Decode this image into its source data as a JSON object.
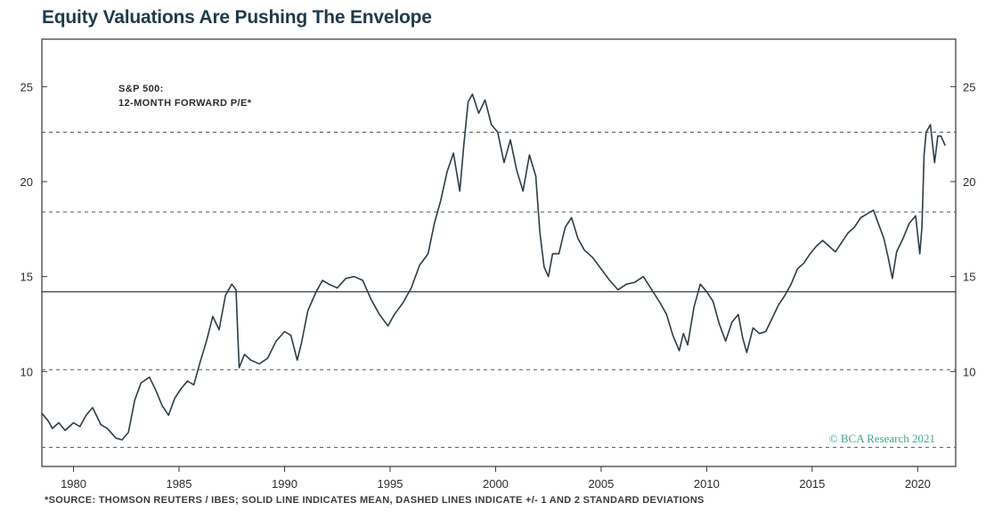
{
  "page": {
    "title": "Equity Valuations Are Pushing The Envelope",
    "footnote": "*SOURCE: THOMSON REUTERS / IBES; SOLID LINE INDICATES MEAN, DASHED LINES INDICATE +/- 1 AND 2 STANDARD DEVIATIONS",
    "watermark": "© BCA Research 2021"
  },
  "colors": {
    "line": "#2b3d45",
    "frame": "#333333",
    "mean": "#2b3d45",
    "dashed": "#555555",
    "watermark": "#3da68f"
  },
  "chart_data": {
    "type": "line",
    "title": "Equity Valuations Are Pushing The Envelope",
    "series_label": [
      "S&P 500:",
      "12-MONTH FORWARD P/E*"
    ],
    "xlim": [
      1978.5,
      2021.8
    ],
    "ylim": [
      5,
      27.5
    ],
    "x_ticks": [
      1980,
      1985,
      1990,
      1995,
      2000,
      2005,
      2010,
      2015,
      2020
    ],
    "y_ticks": [
      10,
      15,
      20,
      25
    ],
    "mean": 14.2,
    "std_lines": [
      6.0,
      10.1,
      18.4,
      22.6
    ],
    "grid": false,
    "axes": "left and right y-axes",
    "series": [
      {
        "name": "S&P 500: 12-MONTH FORWARD P/E*",
        "x": [
          1978.5,
          1978.8,
          1979.0,
          1979.3,
          1979.6,
          1980.0,
          1980.3,
          1980.6,
          1980.9,
          1981.3,
          1981.6,
          1982.0,
          1982.3,
          1982.6,
          1982.9,
          1983.2,
          1983.6,
          1983.9,
          1984.2,
          1984.5,
          1984.8,
          1985.1,
          1985.4,
          1985.7,
          1986.0,
          1986.3,
          1986.6,
          1986.9,
          1987.2,
          1987.5,
          1987.7,
          1987.85,
          1988.1,
          1988.4,
          1988.8,
          1989.2,
          1989.6,
          1990.0,
          1990.3,
          1990.6,
          1990.8,
          1991.1,
          1991.5,
          1991.8,
          1992.1,
          1992.5,
          1992.9,
          1993.3,
          1993.7,
          1994.1,
          1994.5,
          1994.9,
          1995.2,
          1995.6,
          1996.0,
          1996.4,
          1996.8,
          1997.1,
          1997.4,
          1997.7,
          1998.0,
          1998.3,
          1998.5,
          1998.7,
          1998.9,
          1999.2,
          1999.5,
          1999.8,
          2000.1,
          2000.4,
          2000.7,
          2001.0,
          2001.3,
          2001.6,
          2001.9,
          2002.1,
          2002.3,
          2002.5,
          2002.7,
          2003.0,
          2003.3,
          2003.6,
          2003.9,
          2004.2,
          2004.6,
          2005.0,
          2005.4,
          2005.8,
          2006.2,
          2006.6,
          2007.0,
          2007.4,
          2007.8,
          2008.1,
          2008.4,
          2008.7,
          2008.9,
          2009.1,
          2009.4,
          2009.7,
          2010.0,
          2010.3,
          2010.6,
          2010.9,
          2011.2,
          2011.5,
          2011.7,
          2011.9,
          2012.2,
          2012.5,
          2012.8,
          2013.1,
          2013.4,
          2013.7,
          2014.0,
          2014.3,
          2014.6,
          2014.9,
          2015.2,
          2015.5,
          2015.8,
          2016.1,
          2016.4,
          2016.7,
          2017.0,
          2017.3,
          2017.6,
          2017.9,
          2018.1,
          2018.4,
          2018.6,
          2018.8,
          2019.0,
          2019.3,
          2019.6,
          2019.9,
          2020.1,
          2020.2,
          2020.3,
          2020.4,
          2020.6,
          2020.8,
          2020.95,
          2021.1,
          2021.3
        ],
        "y": [
          7.8,
          7.4,
          7.0,
          7.3,
          6.9,
          7.3,
          7.1,
          7.7,
          8.1,
          7.2,
          7.0,
          6.5,
          6.4,
          6.8,
          8.5,
          9.4,
          9.7,
          9.0,
          8.2,
          7.7,
          8.6,
          9.1,
          9.5,
          9.3,
          10.5,
          11.6,
          12.9,
          12.2,
          14.0,
          14.6,
          14.3,
          10.2,
          10.9,
          10.6,
          10.4,
          10.7,
          11.6,
          12.1,
          11.9,
          10.6,
          11.5,
          13.2,
          14.2,
          14.8,
          14.6,
          14.4,
          14.9,
          15.0,
          14.8,
          13.8,
          13.0,
          12.4,
          13.0,
          13.6,
          14.4,
          15.6,
          16.2,
          17.8,
          19.0,
          20.5,
          21.5,
          19.5,
          22.0,
          24.2,
          24.6,
          23.6,
          24.3,
          23.0,
          22.6,
          21.0,
          22.2,
          20.6,
          19.5,
          21.4,
          20.3,
          17.3,
          15.5,
          15.0,
          16.2,
          16.2,
          17.6,
          18.1,
          17.0,
          16.4,
          16.0,
          15.4,
          14.8,
          14.3,
          14.6,
          14.7,
          15.0,
          14.3,
          13.6,
          13.0,
          11.9,
          11.1,
          12.0,
          11.4,
          13.4,
          14.6,
          14.2,
          13.7,
          12.5,
          11.6,
          12.6,
          13.0,
          11.8,
          11.0,
          12.3,
          12.0,
          12.1,
          12.8,
          13.5,
          14.0,
          14.6,
          15.4,
          15.7,
          16.2,
          16.6,
          16.9,
          16.6,
          16.3,
          16.8,
          17.3,
          17.6,
          18.1,
          18.3,
          18.5,
          17.9,
          17.0,
          16.0,
          14.9,
          16.3,
          17.0,
          17.8,
          18.2,
          16.2,
          17.6,
          21.4,
          22.6,
          23.0,
          21.0,
          22.4,
          22.4,
          21.9
        ]
      }
    ]
  }
}
